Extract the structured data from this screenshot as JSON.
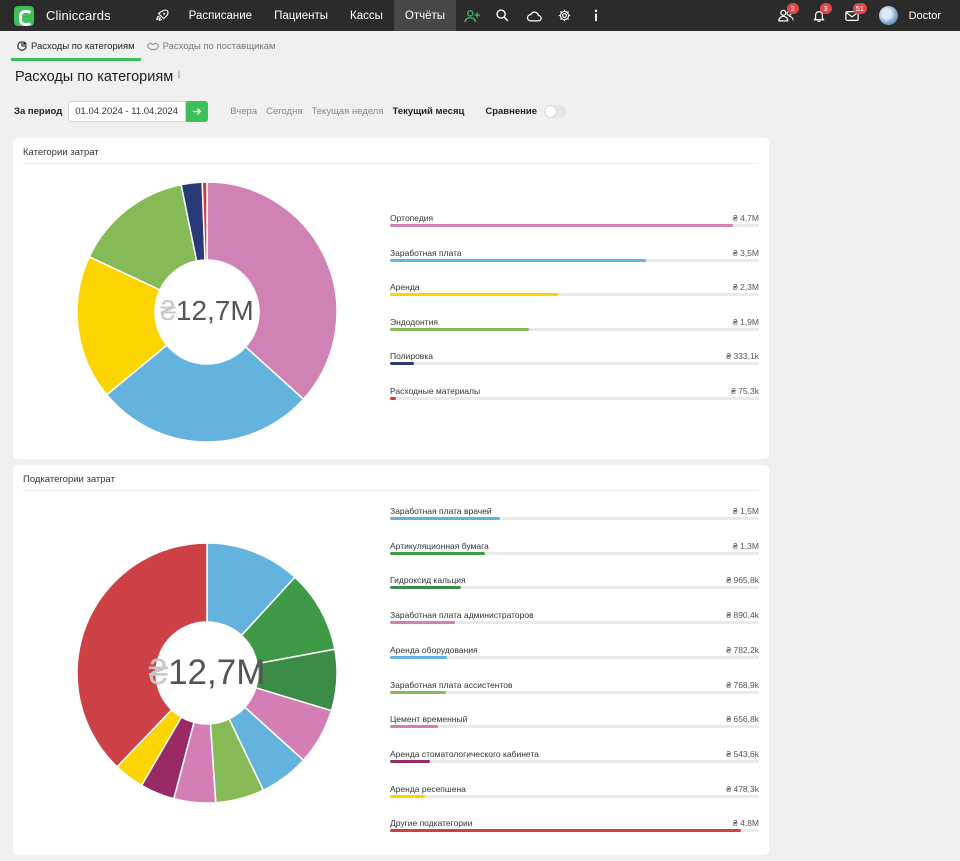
{
  "app": {
    "brand": "Cliniccards"
  },
  "nav": {
    "items": [
      {
        "label": "Расписание"
      },
      {
        "label": "Пациенты"
      },
      {
        "label": "Кассы"
      },
      {
        "label": "Отчёты",
        "active": true
      }
    ],
    "badges": {
      "users": "2",
      "notifications": "3",
      "messages": "51"
    },
    "user": "Doctor"
  },
  "tabs": [
    {
      "label": "Расходы по категориям",
      "active": true
    },
    {
      "label": "Расходы по поставщикам"
    }
  ],
  "page_title": "Расходы по категориям",
  "filter": {
    "label": "За период",
    "date_range": "01.04.2024 -  11.04.2024",
    "quick": [
      "Вчера",
      "Сегодня",
      "Текущая неделя",
      "Текущий месяц"
    ],
    "quick_active": "Текущий месяц",
    "compare_label": "Сравнение",
    "compare_on": false
  },
  "colors": {
    "accent": "#3cbf5c"
  },
  "chart_data": [
    {
      "type": "pie",
      "title": "Категории затрат",
      "total": "₴12,7M",
      "currency": "₴",
      "center_value": "12,7M",
      "slices": [
        {
          "label": "Ортопедия",
          "value_text": "₴ 4,7M",
          "value": 4700000,
          "color": "#cf82b3"
        },
        {
          "label": "Заработная плата",
          "value_text": "₴ 3,5M",
          "value": 3500000,
          "color": "#63b3de"
        },
        {
          "label": "Аренда",
          "value_text": "₴ 2,3M",
          "value": 2300000,
          "color": "#fcd500"
        },
        {
          "label": "Эндодонтия",
          "value_text": "₴ 1,9M",
          "value": 1900000,
          "color": "#85ba57"
        },
        {
          "label": "Полировка",
          "value_text": "₴ 333,1k",
          "value": 333100,
          "color": "#2a3a78"
        },
        {
          "label": "Расходные материалы",
          "value_text": "₴ 75,3k",
          "value": 75300,
          "color": "#d33b3b"
        }
      ]
    },
    {
      "type": "pie",
      "title": "Подкатегории затрат",
      "total": "₴12,7M",
      "currency": "₴",
      "center_value": "12,7M",
      "slices": [
        {
          "label": "Заработная плата врачей",
          "value_text": "₴ 1,5M",
          "value": 1500000,
          "color": "#63b3de"
        },
        {
          "label": "Артикуляционная бумага",
          "value_text": "₴ 1,3M",
          "value": 1300000,
          "color": "#3e9a47"
        },
        {
          "label": "Гидроксид кальция",
          "value_text": "₴ 965,8k",
          "value": 965800,
          "color": "#3a8c46"
        },
        {
          "label": "Заработная плата администраторов",
          "value_text": "₴ 890,4k",
          "value": 890400,
          "color": "#d37fb6"
        },
        {
          "label": "Аренда оборудования",
          "value_text": "₴ 782,2k",
          "value": 782200,
          "color": "#63b3de"
        },
        {
          "label": "Заработная плата ассистентов",
          "value_text": "₴ 768,9k",
          "value": 768900,
          "color": "#85ba57"
        },
        {
          "label": "Цемент временный",
          "value_text": "₴ 656,8k",
          "value": 656800,
          "color": "#d37fb6"
        },
        {
          "label": "Аренда стоматологического кабинета",
          "value_text": "₴ 543,6k",
          "value": 543600,
          "color": "#9a2a66"
        },
        {
          "label": "Аренда ресепшена",
          "value_text": "₴ 478,3k",
          "value": 478300,
          "color": "#fcd500"
        },
        {
          "label": "Другие подкатегории",
          "value_text": "₴ 4,8M",
          "value": 4800000,
          "color": "#cd4146"
        }
      ]
    }
  ]
}
